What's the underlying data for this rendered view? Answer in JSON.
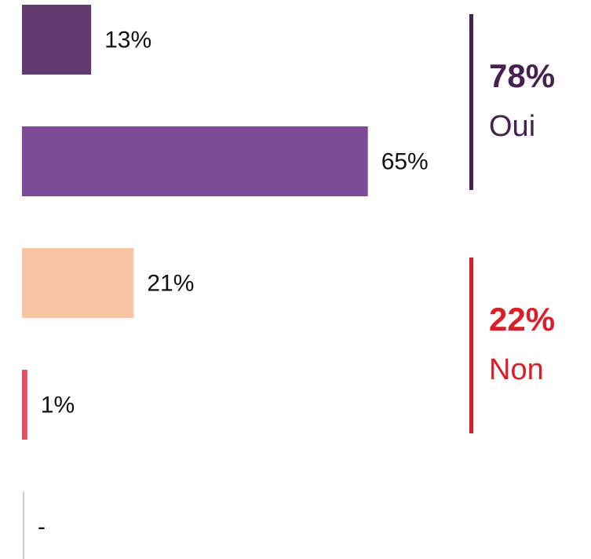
{
  "chart_data": {
    "type": "hbar",
    "categories": [
      null,
      null,
      null,
      null,
      null
    ],
    "values": [
      13,
      65,
      21,
      1,
      null
    ],
    "value_labels": [
      "13%",
      "65%",
      "21%",
      "1%",
      "-"
    ],
    "colors": [
      "#633a6f",
      "#7e4b99",
      "#f7c4a5",
      "#e3505a",
      "#cccccc"
    ],
    "xlim": [
      0,
      100
    ],
    "groups": [
      {
        "name": "Oui",
        "value": 78,
        "value_label": "78%",
        "color": "#45224f"
      },
      {
        "name": "Non",
        "value": 22,
        "value_label": "22%",
        "color": "#d91f2a"
      }
    ]
  }
}
